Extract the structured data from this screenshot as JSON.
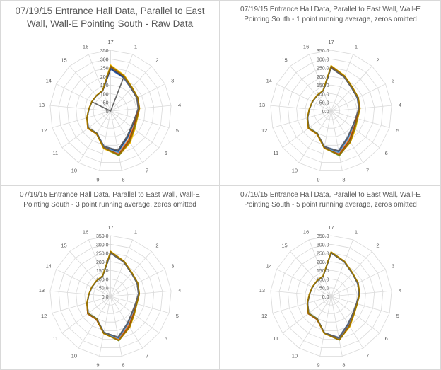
{
  "chart_data": [
    {
      "type": "radar",
      "title": "07/19/15 Entrance Hall Data, Parallel to East Wall, Wall-E Pointing South - Raw Data",
      "categories": [
        "1",
        "2",
        "3",
        "4",
        "5",
        "6",
        "7",
        "8",
        "9",
        "10",
        "11",
        "12",
        "13",
        "14",
        "15",
        "16",
        "17"
      ],
      "rlim": [
        0,
        350
      ],
      "tick_labels": [
        "0",
        "50",
        "100",
        "150",
        "200",
        "250",
        "300",
        "350"
      ],
      "grid": true,
      "series": [
        {
          "color": "#4472c4",
          "values": [
            205,
            175,
            168,
            160,
            145,
            150,
            175,
            230,
            205,
            150,
            160,
            140,
            125,
            120,
            120,
            125,
            240
          ]
        },
        {
          "color": "#ed7d31",
          "values": [
            215,
            180,
            172,
            163,
            150,
            158,
            195,
            250,
            215,
            155,
            165,
            142,
            126,
            121,
            121,
            126,
            255
          ]
        },
        {
          "color": "#a5a5a5",
          "values": [
            210,
            178,
            170,
            162,
            148,
            155,
            185,
            240,
            210,
            152,
            162,
            141,
            125,
            120,
            120,
            125,
            248
          ]
        },
        {
          "color": "#ffc000",
          "values": [
            220,
            185,
            175,
            168,
            160,
            175,
            215,
            260,
            220,
            155,
            165,
            143,
            127,
            122,
            122,
            128,
            265
          ]
        },
        {
          "color": "#5b9bd5",
          "values": [
            212,
            178,
            170,
            161,
            148,
            154,
            185,
            242,
            212,
            152,
            163,
            141,
            125,
            120,
            120,
            126,
            250
          ]
        },
        {
          "color": "#70ad47",
          "values": [
            215,
            182,
            174,
            166,
            158,
            172,
            205,
            262,
            215,
            150,
            160,
            142,
            126,
            121,
            121,
            127,
            258
          ]
        },
        {
          "color": "#264478",
          "values": [
            208,
            177,
            169,
            161,
            147,
            153,
            180,
            235,
            208,
            150,
            162,
            140,
            125,
            120,
            120,
            125,
            245
          ]
        },
        {
          "color": "#9e480e",
          "values": [
            214,
            181,
            173,
            164,
            152,
            165,
            200,
            255,
            214,
            154,
            164,
            142,
            126,
            121,
            121,
            126,
            255
          ]
        },
        {
          "color": "#636363",
          "values": [
            208,
            176,
            168,
            159,
            145,
            150,
            175,
            228,
            208,
            150,
            160,
            140,
            125,
            120,
            0,
            0,
            0
          ]
        },
        {
          "color": "#997300",
          "values": [
            216,
            183,
            175,
            167,
            158,
            170,
            210,
            258,
            216,
            153,
            163,
            142,
            126,
            121,
            121,
            127,
            260
          ]
        }
      ]
    },
    {
      "type": "radar",
      "title": "07/19/15 Entrance Hall Data, Parallel to East Wall, Wall-E Pointing South - 1 point running average, zeros omitted",
      "categories": [
        "1",
        "2",
        "3",
        "4",
        "5",
        "6",
        "7",
        "8",
        "9",
        "10",
        "11",
        "12",
        "13",
        "14",
        "15",
        "16",
        "17"
      ],
      "rlim": [
        0,
        350
      ],
      "tick_labels": [
        "0.0",
        "50.0",
        "100.0",
        "150.0",
        "200.0",
        "250.0",
        "300.0",
        "350.0"
      ],
      "grid": true,
      "series": [
        {
          "color": "#4472c4",
          "values": [
            210,
            178,
            168,
            160,
            148,
            152,
            178,
            232,
            208,
            152,
            162,
            141,
            125,
            120,
            120,
            125,
            250
          ]
        },
        {
          "color": "#ed7d31",
          "values": [
            214,
            181,
            172,
            163,
            151,
            160,
            196,
            250,
            214,
            156,
            165,
            142,
            126,
            121,
            121,
            126,
            256
          ]
        },
        {
          "color": "#a5a5a5",
          "values": [
            211,
            179,
            170,
            162,
            149,
            156,
            186,
            241,
            211,
            153,
            163,
            141,
            125,
            120,
            120,
            125,
            252
          ]
        },
        {
          "color": "#ffc000",
          "values": [
            218,
            185,
            175,
            168,
            160,
            175,
            212,
            258,
            218,
            155,
            165,
            143,
            127,
            122,
            122,
            128,
            262
          ]
        },
        {
          "color": "#5b9bd5",
          "values": [
            212,
            179,
            170,
            161,
            149,
            155,
            186,
            243,
            212,
            152,
            163,
            141,
            125,
            120,
            120,
            126,
            253
          ]
        },
        {
          "color": "#70ad47",
          "values": [
            215,
            182,
            174,
            166,
            158,
            172,
            205,
            262,
            215,
            150,
            160,
            142,
            126,
            121,
            121,
            127,
            258
          ]
        },
        {
          "color": "#264478",
          "values": [
            209,
            177,
            169,
            161,
            148,
            153,
            181,
            236,
            209,
            151,
            162,
            140,
            125,
            120,
            120,
            125,
            248
          ]
        },
        {
          "color": "#9e480e",
          "values": [
            214,
            181,
            173,
            164,
            152,
            165,
            200,
            255,
            214,
            154,
            164,
            142,
            126,
            121,
            121,
            126,
            255
          ]
        },
        {
          "color": "#636363",
          "values": [
            209,
            177,
            169,
            160,
            147,
            152,
            179,
            233,
            209,
            151,
            161,
            140,
            125,
            120,
            120,
            125,
            249
          ]
        },
        {
          "color": "#997300",
          "values": [
            216,
            183,
            175,
            167,
            158,
            170,
            210,
            258,
            216,
            153,
            163,
            142,
            126,
            121,
            121,
            127,
            260
          ]
        }
      ]
    },
    {
      "type": "radar",
      "title": "07/19/15 Entrance Hall Data, Parallel to East Wall, Wall-E Pointing South - 3 point running average, zeros omitted",
      "categories": [
        "1",
        "2",
        "3",
        "4",
        "5",
        "6",
        "7",
        "8",
        "9",
        "10",
        "11",
        "12",
        "13",
        "14",
        "15",
        "16",
        "17"
      ],
      "rlim": [
        0,
        350
      ],
      "tick_labels": [
        "0.0",
        "50.0",
        "100.0",
        "150.0",
        "200.0",
        "250.0",
        "300.0",
        "350.0"
      ],
      "grid": true,
      "series": [
        {
          "color": "#4472c4",
          "values": [
            212,
            180,
            170,
            161,
            150,
            155,
            182,
            238,
            210,
            152,
            162,
            141,
            125,
            120,
            120,
            125,
            250
          ]
        },
        {
          "color": "#ed7d31",
          "values": [
            215,
            182,
            172,
            164,
            153,
            162,
            196,
            252,
            215,
            156,
            165,
            142,
            126,
            121,
            121,
            126,
            255
          ]
        },
        {
          "color": "#a5a5a5",
          "values": [
            213,
            180,
            171,
            162,
            151,
            158,
            188,
            244,
            212,
            153,
            163,
            141,
            125,
            120,
            120,
            125,
            252
          ]
        },
        {
          "color": "#ffc000",
          "values": [
            217,
            184,
            174,
            167,
            158,
            172,
            210,
            258,
            218,
            155,
            165,
            143,
            127,
            122,
            122,
            128,
            260
          ]
        },
        {
          "color": "#5b9bd5",
          "values": [
            213,
            180,
            171,
            162,
            150,
            157,
            188,
            245,
            213,
            152,
            163,
            141,
            125,
            120,
            120,
            126,
            252
          ]
        },
        {
          "color": "#70ad47",
          "values": [
            215,
            182,
            174,
            166,
            157,
            170,
            204,
            260,
            215,
            150,
            160,
            142,
            126,
            121,
            121,
            127,
            257
          ]
        },
        {
          "color": "#264478",
          "values": [
            211,
            179,
            170,
            161,
            149,
            155,
            184,
            240,
            210,
            151,
            162,
            140,
            125,
            120,
            120,
            125,
            249
          ]
        },
        {
          "color": "#9e480e",
          "values": [
            215,
            182,
            173,
            165,
            155,
            166,
            202,
            257,
            216,
            156,
            166,
            142,
            126,
            121,
            121,
            126,
            256
          ]
        },
        {
          "color": "#636363",
          "values": [
            211,
            179,
            170,
            161,
            149,
            154,
            183,
            238,
            210,
            151,
            161,
            140,
            125,
            120,
            120,
            125,
            249
          ]
        },
        {
          "color": "#997300",
          "values": [
            216,
            183,
            175,
            166,
            157,
            170,
            208,
            258,
            216,
            153,
            163,
            142,
            126,
            121,
            121,
            127,
            258
          ]
        }
      ]
    },
    {
      "type": "radar",
      "title": "07/19/15 Entrance Hall Data, Parallel to East Wall, Wall-E Pointing South - 5 point running average, zeros omitted",
      "categories": [
        "1",
        "2",
        "3",
        "4",
        "5",
        "6",
        "7",
        "8",
        "9",
        "10",
        "11",
        "12",
        "13",
        "14",
        "15",
        "16",
        "17"
      ],
      "rlim": [
        0,
        350
      ],
      "tick_labels": [
        "0.0",
        "50.0",
        "100.0",
        "150.0",
        "200.0",
        "250.0",
        "300.0",
        "350.0"
      ],
      "grid": true,
      "series": [
        {
          "color": "#4472c4",
          "values": [
            212,
            180,
            170,
            162,
            152,
            158,
            185,
            240,
            212,
            152,
            162,
            141,
            125,
            120,
            120,
            125,
            250
          ]
        },
        {
          "color": "#ed7d31",
          "values": [
            214,
            182,
            172,
            164,
            154,
            162,
            194,
            250,
            215,
            154,
            164,
            142,
            126,
            121,
            121,
            126,
            253
          ]
        },
        {
          "color": "#a5a5a5",
          "values": [
            213,
            181,
            171,
            163,
            153,
            160,
            190,
            246,
            213,
            153,
            163,
            141,
            125,
            120,
            120,
            125,
            251
          ]
        },
        {
          "color": "#ffc000",
          "values": [
            216,
            184,
            174,
            166,
            157,
            168,
            205,
            255,
            217,
            155,
            165,
            143,
            127,
            122,
            122,
            128,
            257
          ]
        },
        {
          "color": "#5b9bd5",
          "values": [
            213,
            181,
            171,
            163,
            153,
            159,
            190,
            246,
            213,
            152,
            163,
            141,
            125,
            120,
            120,
            126,
            251
          ]
        },
        {
          "color": "#70ad47",
          "values": [
            215,
            183,
            173,
            165,
            156,
            166,
            200,
            256,
            215,
            150,
            160,
            142,
            126,
            121,
            121,
            127,
            255
          ]
        },
        {
          "color": "#264478",
          "values": [
            212,
            180,
            170,
            162,
            152,
            158,
            187,
            243,
            212,
            151,
            162,
            140,
            125,
            120,
            120,
            125,
            250
          ]
        },
        {
          "color": "#9e480e",
          "values": [
            215,
            182,
            173,
            165,
            155,
            165,
            198,
            254,
            215,
            156,
            165,
            142,
            126,
            121,
            121,
            126,
            254
          ]
        },
        {
          "color": "#636363",
          "values": [
            212,
            180,
            170,
            162,
            152,
            158,
            186,
            242,
            212,
            151,
            161,
            140,
            125,
            120,
            120,
            125,
            250
          ]
        },
        {
          "color": "#997300",
          "values": [
            215,
            183,
            174,
            166,
            156,
            166,
            202,
            255,
            216,
            153,
            163,
            142,
            126,
            121,
            121,
            127,
            255
          ]
        }
      ]
    }
  ]
}
